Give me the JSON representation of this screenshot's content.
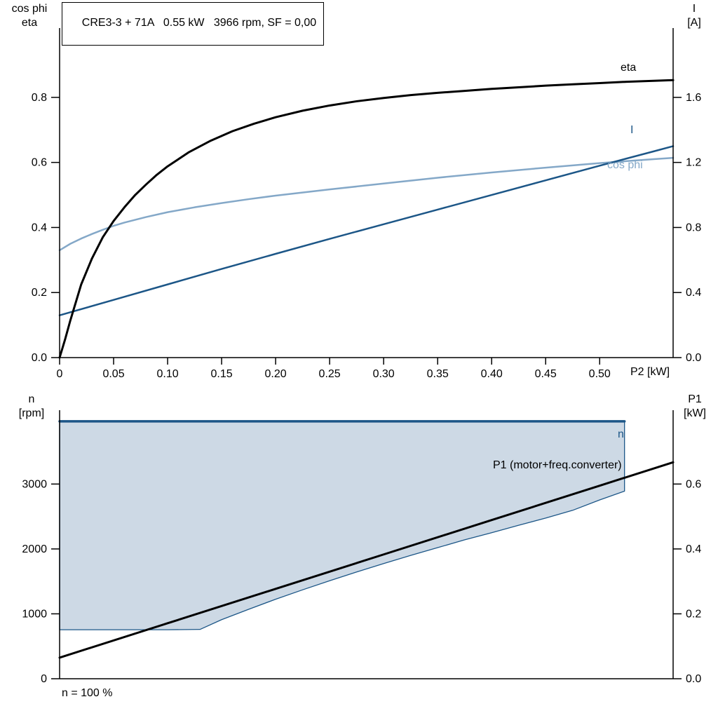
{
  "colors": {
    "black": "#000000",
    "dark_blue": "#1c5687",
    "light_blue": "#84a8c8",
    "region_fill": "#cdd9e5",
    "axis": "#000000"
  },
  "chart_data": [
    {
      "id": "top",
      "type": "line",
      "title": "CRE3-3 + 71A   0.55 kW   3966 rpm, SF = 0,00",
      "x_axis": {
        "label": "P2 [kW]",
        "min": 0,
        "max": 0.568,
        "ticks": [
          0,
          0.05,
          0.1,
          0.15,
          0.2,
          0.25,
          0.3,
          0.35,
          0.4,
          0.45,
          0.5
        ],
        "tick_labels": [
          "0",
          "0.05",
          "0.10",
          "0.15",
          "0.20",
          "0.25",
          "0.30",
          "0.35",
          "0.40",
          "0.45",
          "0.50"
        ]
      },
      "y_left": {
        "label_lines": [
          "cos phi",
          "eta"
        ],
        "min": 0,
        "max": 0.97,
        "ticks": [
          0,
          0.2,
          0.4,
          0.6,
          0.8
        ],
        "tick_labels": [
          "0.0",
          "0.2",
          "0.4",
          "0.6",
          "0.8"
        ]
      },
      "y_right": {
        "label_lines": [
          "I",
          "[A]"
        ],
        "min": 0,
        "max": 1.94,
        "ticks": [
          0,
          0.4,
          0.8,
          1.2,
          1.6
        ],
        "tick_labels": [
          "0.0",
          "0.4",
          "0.8",
          "1.2",
          "1.6"
        ]
      },
      "series": [
        {
          "key": "cos-phi",
          "name": "cos phi",
          "axis": "left",
          "color": "#84a8c8",
          "width": 2.5,
          "points": [
            [
              0,
              0.33
            ],
            [
              0.01,
              0.35
            ],
            [
              0.02,
              0.366
            ],
            [
              0.03,
              0.38
            ],
            [
              0.04,
              0.393
            ],
            [
              0.05,
              0.405
            ],
            [
              0.06,
              0.415
            ],
            [
              0.08,
              0.432
            ],
            [
              0.1,
              0.447
            ],
            [
              0.125,
              0.462
            ],
            [
              0.15,
              0.475
            ],
            [
              0.175,
              0.487
            ],
            [
              0.2,
              0.498
            ],
            [
              0.25,
              0.517
            ],
            [
              0.3,
              0.535
            ],
            [
              0.35,
              0.553
            ],
            [
              0.4,
              0.569
            ],
            [
              0.45,
              0.584
            ],
            [
              0.5,
              0.598
            ],
            [
              0.525,
              0.604
            ],
            [
              0.55,
              0.61
            ],
            [
              0.568,
              0.614
            ]
          ]
        },
        {
          "key": "current",
          "name": "I",
          "axis": "right",
          "color": "#1c5687",
          "width": 2.5,
          "points": [
            [
              0,
              0.26
            ],
            [
              0.05,
              0.355
            ],
            [
              0.1,
              0.45
            ],
            [
              0.15,
              0.545
            ],
            [
              0.2,
              0.638
            ],
            [
              0.25,
              0.73
            ],
            [
              0.3,
              0.82
            ],
            [
              0.35,
              0.91
            ],
            [
              0.4,
              1.0
            ],
            [
              0.45,
              1.09
            ],
            [
              0.5,
              1.18
            ],
            [
              0.55,
              1.268
            ],
            [
              0.568,
              1.3
            ]
          ]
        },
        {
          "key": "eta",
          "name": "eta",
          "axis": "left",
          "color": "#000000",
          "width": 3,
          "points": [
            [
              0,
              0
            ],
            [
              0.005,
              0.055
            ],
            [
              0.01,
              0.115
            ],
            [
              0.015,
              0.17
            ],
            [
              0.02,
              0.225
            ],
            [
              0.03,
              0.305
            ],
            [
              0.04,
              0.37
            ],
            [
              0.05,
              0.42
            ],
            [
              0.06,
              0.462
            ],
            [
              0.07,
              0.5
            ],
            [
              0.08,
              0.532
            ],
            [
              0.09,
              0.562
            ],
            [
              0.1,
              0.588
            ],
            [
              0.12,
              0.632
            ],
            [
              0.14,
              0.667
            ],
            [
              0.16,
              0.696
            ],
            [
              0.18,
              0.719
            ],
            [
              0.2,
              0.739
            ],
            [
              0.225,
              0.759
            ],
            [
              0.25,
              0.775
            ],
            [
              0.275,
              0.788
            ],
            [
              0.3,
              0.798
            ],
            [
              0.325,
              0.807
            ],
            [
              0.35,
              0.814
            ],
            [
              0.375,
              0.82
            ],
            [
              0.4,
              0.826
            ],
            [
              0.425,
              0.831
            ],
            [
              0.45,
              0.836
            ],
            [
              0.475,
              0.84
            ],
            [
              0.5,
              0.844
            ],
            [
              0.525,
              0.848
            ],
            [
              0.55,
              0.851
            ],
            [
              0.568,
              0.853
            ]
          ]
        }
      ]
    },
    {
      "id": "bottom",
      "type": "line",
      "footnote": "n = 100 %",
      "x_axis": {
        "label": "",
        "min": 0,
        "max": 0.568,
        "ticks": [],
        "tick_labels": []
      },
      "y_left": {
        "label_lines": [
          "n",
          "[rpm]"
        ],
        "min": 0,
        "max": 4300,
        "ticks": [
          0,
          1000,
          2000,
          3000
        ],
        "tick_labels": [
          "0",
          "1000",
          "2000",
          "3000"
        ]
      },
      "y_right": {
        "label_lines": [
          "P1",
          "[kW]"
        ],
        "min": 0,
        "max": 0.86,
        "ticks": [
          0,
          0.2,
          0.4,
          0.6
        ],
        "tick_labels": [
          "0.0",
          "0.2",
          "0.4",
          "0.6"
        ]
      },
      "region": {
        "fill": "#cdd9e5",
        "stroke": "#1c5687",
        "polygon": [
          [
            0,
            3966
          ],
          [
            0.523,
            3966
          ],
          [
            0.523,
            2890
          ],
          [
            0.5,
            2755
          ],
          [
            0.475,
            2595
          ],
          [
            0.45,
            2475
          ],
          [
            0.425,
            2365
          ],
          [
            0.4,
            2250
          ],
          [
            0.375,
            2140
          ],
          [
            0.35,
            2020
          ],
          [
            0.325,
            1900
          ],
          [
            0.3,
            1775
          ],
          [
            0.275,
            1645
          ],
          [
            0.25,
            1510
          ],
          [
            0.225,
            1370
          ],
          [
            0.2,
            1225
          ],
          [
            0.175,
            1070
          ],
          [
            0.15,
            910
          ],
          [
            0.13,
            760
          ],
          [
            0.1,
            755
          ],
          [
            0.05,
            755
          ],
          [
            0,
            755
          ]
        ]
      },
      "series": [
        {
          "key": "speed",
          "name": "n",
          "axis": "left",
          "color": "#1c5687",
          "width": 3.5,
          "points": [
            [
              0,
              3966
            ],
            [
              0.523,
              3966
            ]
          ]
        },
        {
          "key": "p1",
          "name": "P1 (motor+freq.converter)",
          "axis": "right",
          "color": "#000000",
          "width": 3,
          "points": [
            [
              0,
              0.065
            ],
            [
              0.1,
              0.171
            ],
            [
              0.2,
              0.277
            ],
            [
              0.3,
              0.383
            ],
            [
              0.4,
              0.489
            ],
            [
              0.5,
              0.595
            ],
            [
              0.568,
              0.667
            ]
          ]
        }
      ]
    }
  ]
}
